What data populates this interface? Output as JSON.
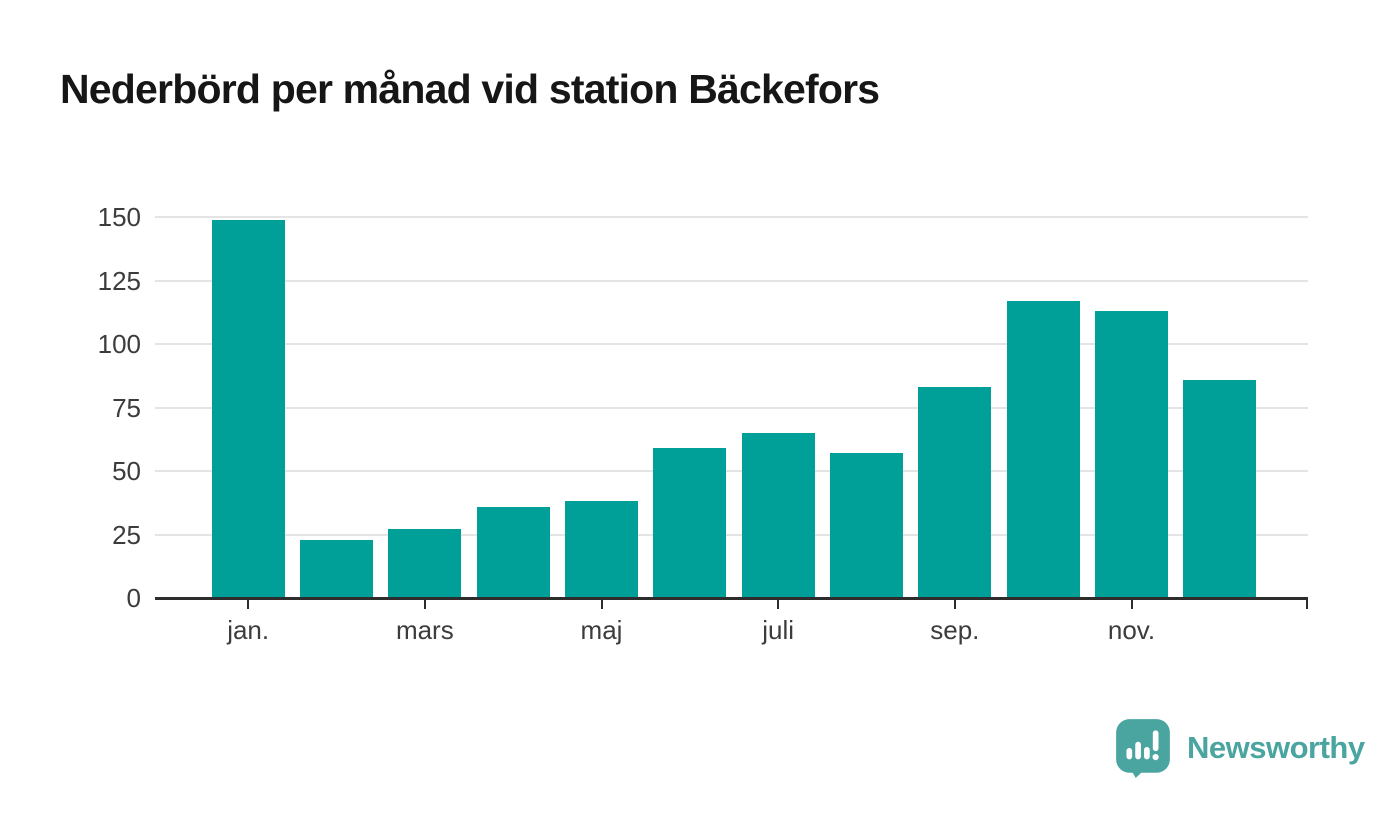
{
  "title": "Nederbörd per månad vid station Bäckefors",
  "branding": {
    "logo_text": "Newsworthy",
    "logo_icon": "speech-bubble-with-bar-chart-and-exclamation"
  },
  "colors": {
    "background": "#ffffff",
    "bar": "#00a099",
    "grid": "#e4e4e4",
    "axis": "#2d2d2d",
    "axis_text": "#3c3c3c",
    "title_text": "#161616",
    "logo": "#4aa5a0"
  },
  "chart_data": {
    "type": "bar",
    "title": "Nederbörd per månad vid station Bäckefors",
    "xlabel": "",
    "ylabel": "",
    "values": [
      149,
      23,
      27,
      36,
      38,
      59,
      65,
      57,
      83,
      117,
      113,
      86
    ],
    "n_bars": 12,
    "x_tick_labels": [
      "jan.",
      "mars",
      "maj",
      "juli",
      "sep.",
      "nov."
    ],
    "x_tick_bar_indices": [
      0,
      2,
      4,
      6,
      8,
      10
    ],
    "axis_end_tick": true,
    "yticks": [
      0,
      25,
      50,
      75,
      100,
      125,
      150
    ],
    "ylim": [
      0,
      150
    ],
    "grid": "horizontal",
    "legend": "none",
    "bar_color": "#00a099"
  }
}
